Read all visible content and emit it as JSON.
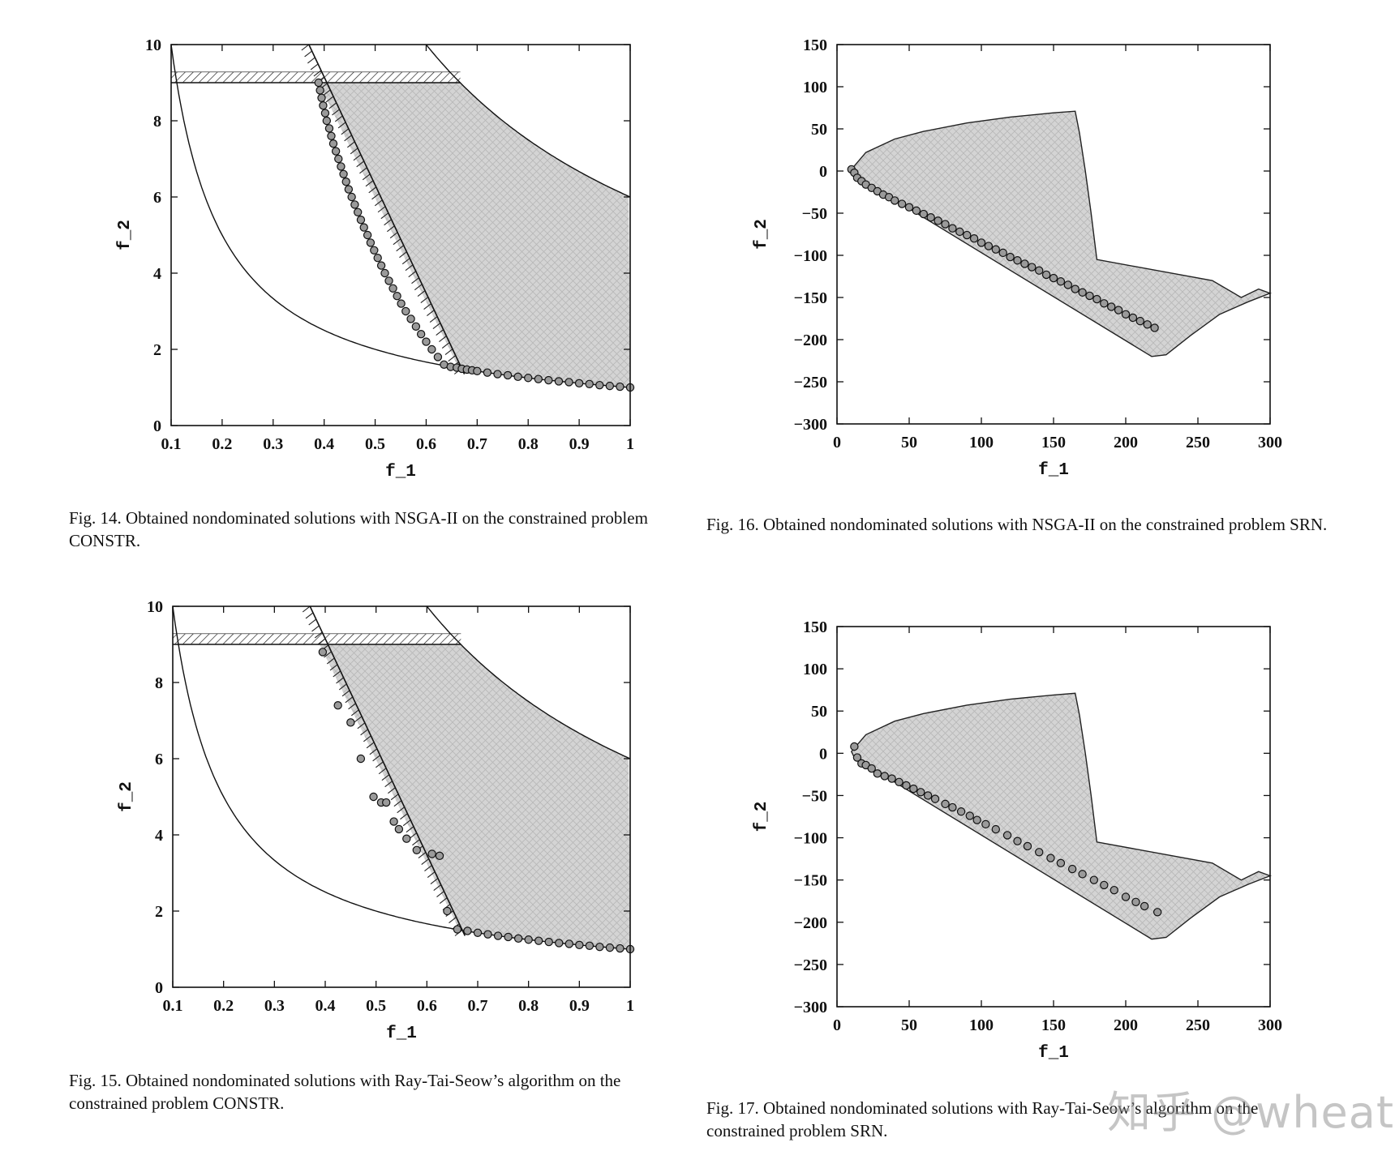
{
  "chart_data": [
    {
      "id": "fig14",
      "type": "scatter",
      "problem": "CONSTR",
      "xlabel": "f_1",
      "ylabel": "f_2",
      "xlim": [
        0.1,
        1.0
      ],
      "ylim": [
        0,
        10
      ],
      "xticks": [
        "0.1",
        "0.2",
        "0.3",
        "0.4",
        "0.5",
        "0.6",
        "0.7",
        "0.8",
        "0.9",
        "1"
      ],
      "yticks": [
        "0",
        "2",
        "4",
        "6",
        "8",
        "10"
      ],
      "caption": "Fig. 14.   Obtained nondominated solutions with NSGA-II on the constrained problem CONSTR.",
      "points": [
        [
          0.389,
          9.0
        ],
        [
          0.392,
          8.8
        ],
        [
          0.395,
          8.6
        ],
        [
          0.398,
          8.4
        ],
        [
          0.402,
          8.2
        ],
        [
          0.405,
          8.0
        ],
        [
          0.41,
          7.8
        ],
        [
          0.414,
          7.6
        ],
        [
          0.418,
          7.4
        ],
        [
          0.423,
          7.2
        ],
        [
          0.428,
          7.0
        ],
        [
          0.433,
          6.8
        ],
        [
          0.438,
          6.6
        ],
        [
          0.443,
          6.4
        ],
        [
          0.448,
          6.2
        ],
        [
          0.454,
          6.0
        ],
        [
          0.46,
          5.8
        ],
        [
          0.466,
          5.6
        ],
        [
          0.472,
          5.4
        ],
        [
          0.478,
          5.2
        ],
        [
          0.485,
          5.0
        ],
        [
          0.491,
          4.8
        ],
        [
          0.498,
          4.6
        ],
        [
          0.505,
          4.4
        ],
        [
          0.512,
          4.2
        ],
        [
          0.519,
          4.0
        ],
        [
          0.527,
          3.8
        ],
        [
          0.535,
          3.6
        ],
        [
          0.543,
          3.4
        ],
        [
          0.551,
          3.2
        ],
        [
          0.56,
          3.0
        ],
        [
          0.57,
          2.8
        ],
        [
          0.58,
          2.6
        ],
        [
          0.59,
          2.4
        ],
        [
          0.6,
          2.2
        ],
        [
          0.611,
          2.0
        ],
        [
          0.623,
          1.8
        ],
        [
          0.635,
          1.6
        ],
        [
          0.648,
          1.54
        ],
        [
          0.66,
          1.52
        ],
        [
          0.67,
          1.49
        ],
        [
          0.68,
          1.47
        ],
        [
          0.69,
          1.45
        ],
        [
          0.7,
          1.43
        ],
        [
          0.72,
          1.39
        ],
        [
          0.74,
          1.35
        ],
        [
          0.76,
          1.32
        ],
        [
          0.78,
          1.28
        ],
        [
          0.8,
          1.25
        ],
        [
          0.82,
          1.22
        ],
        [
          0.84,
          1.19
        ],
        [
          0.86,
          1.16
        ],
        [
          0.88,
          1.14
        ],
        [
          0.9,
          1.11
        ],
        [
          0.92,
          1.09
        ],
        [
          0.94,
          1.06
        ],
        [
          0.96,
          1.04
        ],
        [
          0.98,
          1.02
        ],
        [
          1.0,
          1.0
        ]
      ]
    },
    {
      "id": "fig16",
      "type": "scatter",
      "problem": "SRN",
      "xlabel": "f_1",
      "ylabel": "f_2",
      "xlim": [
        0,
        300
      ],
      "ylim": [
        -300,
        150
      ],
      "xticks": [
        "0",
        "50",
        "100",
        "150",
        "200",
        "250",
        "300"
      ],
      "yticks": [
        "-300",
        "-250",
        "-200",
        "-150",
        "-100",
        "-50",
        "0",
        "50",
        "100",
        "150"
      ],
      "caption": "Fig. 16.   Obtained nondominated solutions with NSGA-II on the constrained problem SRN.",
      "points": [
        [
          10,
          2
        ],
        [
          12,
          -2
        ],
        [
          14,
          -8
        ],
        [
          17,
          -12
        ],
        [
          20,
          -16
        ],
        [
          24,
          -20
        ],
        [
          28,
          -24
        ],
        [
          32,
          -28
        ],
        [
          36,
          -31
        ],
        [
          40,
          -35
        ],
        [
          45,
          -39
        ],
        [
          50,
          -43
        ],
        [
          55,
          -47
        ],
        [
          60,
          -51
        ],
        [
          65,
          -55
        ],
        [
          70,
          -59
        ],
        [
          75,
          -63
        ],
        [
          80,
          -68
        ],
        [
          85,
          -72
        ],
        [
          90,
          -76
        ],
        [
          95,
          -80
        ],
        [
          100,
          -85
        ],
        [
          105,
          -89
        ],
        [
          110,
          -93
        ],
        [
          115,
          -97
        ],
        [
          120,
          -102
        ],
        [
          125,
          -106
        ],
        [
          130,
          -110
        ],
        [
          135,
          -114
        ],
        [
          140,
          -118
        ],
        [
          145,
          -123
        ],
        [
          150,
          -127
        ],
        [
          155,
          -131
        ],
        [
          160,
          -135
        ],
        [
          165,
          -140
        ],
        [
          170,
          -144
        ],
        [
          175,
          -148
        ],
        [
          180,
          -152
        ],
        [
          185,
          -157
        ],
        [
          190,
          -161
        ],
        [
          195,
          -165
        ],
        [
          200,
          -170
        ],
        [
          205,
          -174
        ],
        [
          210,
          -178
        ],
        [
          215,
          -182
        ],
        [
          220,
          -186
        ]
      ]
    },
    {
      "id": "fig15",
      "type": "scatter",
      "problem": "CONSTR",
      "xlabel": "f_1",
      "ylabel": "f_2",
      "xlim": [
        0.1,
        1.0
      ],
      "ylim": [
        0,
        10
      ],
      "xticks": [
        "0.1",
        "0.2",
        "0.3",
        "0.4",
        "0.5",
        "0.6",
        "0.7",
        "0.8",
        "0.9",
        "1"
      ],
      "yticks": [
        "0",
        "2",
        "4",
        "6",
        "8",
        "10"
      ],
      "caption": "Fig. 15.   Obtained nondominated solutions with Ray-Tai-Seow’s algorithm on the constrained problem CONSTR.",
      "points": [
        [
          0.395,
          8.8
        ],
        [
          0.425,
          7.4
        ],
        [
          0.45,
          6.95
        ],
        [
          0.47,
          6.0
        ],
        [
          0.495,
          5.0
        ],
        [
          0.51,
          4.85
        ],
        [
          0.52,
          4.85
        ],
        [
          0.535,
          4.35
        ],
        [
          0.545,
          4.15
        ],
        [
          0.56,
          3.9
        ],
        [
          0.58,
          3.6
        ],
        [
          0.61,
          3.5
        ],
        [
          0.625,
          3.45
        ],
        [
          0.64,
          2.0
        ],
        [
          0.66,
          1.52
        ],
        [
          0.68,
          1.48
        ],
        [
          0.7,
          1.43
        ],
        [
          0.72,
          1.39
        ],
        [
          0.74,
          1.35
        ],
        [
          0.76,
          1.32
        ],
        [
          0.78,
          1.28
        ],
        [
          0.8,
          1.25
        ],
        [
          0.82,
          1.22
        ],
        [
          0.84,
          1.19
        ],
        [
          0.86,
          1.16
        ],
        [
          0.88,
          1.14
        ],
        [
          0.9,
          1.11
        ],
        [
          0.92,
          1.09
        ],
        [
          0.94,
          1.06
        ],
        [
          0.96,
          1.04
        ],
        [
          0.98,
          1.02
        ],
        [
          1.0,
          1.0
        ]
      ]
    },
    {
      "id": "fig17",
      "type": "scatter",
      "problem": "SRN",
      "xlabel": "f_1",
      "ylabel": "f_2",
      "xlim": [
        0,
        300
      ],
      "ylim": [
        -300,
        150
      ],
      "xticks": [
        "0",
        "50",
        "100",
        "150",
        "200",
        "250",
        "300"
      ],
      "yticks": [
        "-300",
        "-250",
        "-200",
        "-150",
        "-100",
        "-50",
        "0",
        "50",
        "100",
        "150"
      ],
      "caption": "Fig. 17.   Obtained nondominated solutions with Ray-Tai-Seow’s algorithm on the constrained problem SRN.",
      "points": [
        [
          12,
          8
        ],
        [
          14,
          -5
        ],
        [
          17,
          -12
        ],
        [
          20,
          -14
        ],
        [
          24,
          -18
        ],
        [
          28,
          -24
        ],
        [
          33,
          -27
        ],
        [
          38,
          -30
        ],
        [
          43,
          -34
        ],
        [
          48,
          -38
        ],
        [
          53,
          -42
        ],
        [
          58,
          -46
        ],
        [
          63,
          -50
        ],
        [
          68,
          -54
        ],
        [
          75,
          -60
        ],
        [
          80,
          -64
        ],
        [
          86,
          -69
        ],
        [
          92,
          -74
        ],
        [
          97,
          -79
        ],
        [
          103,
          -84
        ],
        [
          110,
          -90
        ],
        [
          118,
          -97
        ],
        [
          125,
          -104
        ],
        [
          132,
          -110
        ],
        [
          140,
          -117
        ],
        [
          148,
          -124
        ],
        [
          155,
          -130
        ],
        [
          163,
          -137
        ],
        [
          170,
          -143
        ],
        [
          178,
          -150
        ],
        [
          185,
          -156
        ],
        [
          192,
          -162
        ],
        [
          200,
          -170
        ],
        [
          207,
          -176
        ],
        [
          213,
          -181
        ],
        [
          222,
          -188
        ]
      ]
    }
  ],
  "watermark": "知乎 @wheat"
}
